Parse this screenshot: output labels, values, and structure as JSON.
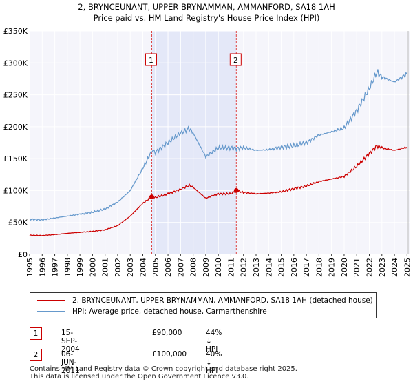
{
  "chart_data": {
    "type": "line",
    "title": "2, BRYNCEUNANT, UPPER BRYNAMMAN, AMMANFORD, SA18 1AH",
    "subtitle": "Price paid vs. HM Land Registry's House Price Index (HPI)",
    "xlabel": "",
    "ylabel": "",
    "xlim": [
      1995,
      2025.2
    ],
    "ylim": [
      0,
      350000
    ],
    "grid": true,
    "y_ticks": [
      {
        "value": 0,
        "label": "£0"
      },
      {
        "value": 50000,
        "label": "£50K"
      },
      {
        "value": 100000,
        "label": "£100K"
      },
      {
        "value": 150000,
        "label": "£150K"
      },
      {
        "value": 200000,
        "label": "£200K"
      },
      {
        "value": 250000,
        "label": "£250K"
      },
      {
        "value": 300000,
        "label": "£300K"
      },
      {
        "value": 350000,
        "label": "£350K"
      }
    ],
    "x_ticks": [
      "1995",
      "1996",
      "1997",
      "1998",
      "1999",
      "2000",
      "2001",
      "2002",
      "2003",
      "2004",
      "2005",
      "2006",
      "2007",
      "2008",
      "2009",
      "2010",
      "2011",
      "2012",
      "2013",
      "2014",
      "2015",
      "2016",
      "2017",
      "2018",
      "2019",
      "2020",
      "2021",
      "2022",
      "2023",
      "2024",
      "2025"
    ],
    "shaded_region": [
      2004.71,
      2011.43
    ],
    "series": [
      {
        "name": "2, BRYNCEUNANT, UPPER BRYNAMMAN, AMMANFORD, SA18 1AH (detached house)",
        "color": "#cc0000",
        "points": [
          [
            1995,
            30000
          ],
          [
            1996,
            29500
          ],
          [
            1997,
            31000
          ],
          [
            1998,
            33000
          ],
          [
            1999,
            34500
          ],
          [
            2000,
            36000
          ],
          [
            2001,
            38500
          ],
          [
            2002,
            45000
          ],
          [
            2003,
            60000
          ],
          [
            2004,
            80000
          ],
          [
            2004.71,
            90000
          ],
          [
            2005,
            89000
          ],
          [
            2006,
            95000
          ],
          [
            2007,
            102000
          ],
          [
            2007.7,
            108000
          ],
          [
            2008,
            105000
          ],
          [
            2009,
            88000
          ],
          [
            2010,
            95000
          ],
          [
            2011,
            95000
          ],
          [
            2011.43,
            100000
          ],
          [
            2012,
            97000
          ],
          [
            2013,
            95000
          ],
          [
            2014,
            96000
          ],
          [
            2015,
            98000
          ],
          [
            2016,
            103000
          ],
          [
            2017,
            107000
          ],
          [
            2018,
            114000
          ],
          [
            2019,
            118000
          ],
          [
            2020,
            122000
          ],
          [
            2021,
            138000
          ],
          [
            2022,
            158000
          ],
          [
            2022.6,
            170000
          ],
          [
            2023,
            167000
          ],
          [
            2024,
            163000
          ],
          [
            2025,
            168000
          ]
        ]
      },
      {
        "name": "HPI: Average price, detached house, Carmarthenshire",
        "color": "#6699cc",
        "points": [
          [
            1995,
            55000
          ],
          [
            1996,
            54000
          ],
          [
            1997,
            57000
          ],
          [
            1998,
            60000
          ],
          [
            1999,
            63000
          ],
          [
            2000,
            66000
          ],
          [
            2001,
            71000
          ],
          [
            2002,
            82000
          ],
          [
            2003,
            100000
          ],
          [
            2004,
            135000
          ],
          [
            2004.71,
            162000
          ],
          [
            2005,
            160000
          ],
          [
            2006,
            175000
          ],
          [
            2007,
            190000
          ],
          [
            2007.7,
            197000
          ],
          [
            2008,
            190000
          ],
          [
            2009,
            153000
          ],
          [
            2010,
            167000
          ],
          [
            2011,
            167000
          ],
          [
            2011.43,
            166000
          ],
          [
            2012,
            167000
          ],
          [
            2013,
            163000
          ],
          [
            2014,
            164000
          ],
          [
            2015,
            168000
          ],
          [
            2016,
            170000
          ],
          [
            2017,
            175000
          ],
          [
            2018,
            187000
          ],
          [
            2019,
            192000
          ],
          [
            2020,
            198000
          ],
          [
            2021,
            225000
          ],
          [
            2022,
            260000
          ],
          [
            2022.6,
            286000
          ],
          [
            2023,
            278000
          ],
          [
            2024,
            270000
          ],
          [
            2025,
            283000
          ]
        ]
      }
    ],
    "markers": [
      {
        "label": "1",
        "x": 2004.71,
        "y": 90000
      },
      {
        "label": "2",
        "x": 2011.43,
        "y": 100000
      }
    ]
  },
  "legend": {
    "items": [
      {
        "label": "2, BRYNCEUNANT, UPPER BRYNAMMAN, AMMANFORD, SA18 1AH (detached house)",
        "color": "#cc0000"
      },
      {
        "label": "HPI: Average price, detached house, Carmarthenshire",
        "color": "#6699cc"
      }
    ]
  },
  "transactions": [
    {
      "badge": "1",
      "date": "15-SEP-2004",
      "price": "£90,000",
      "hpi": "44% ↓ HPI"
    },
    {
      "badge": "2",
      "date": "06-JUN-2011",
      "price": "£100,000",
      "hpi": "40% ↓ HPI"
    }
  ],
  "footer": {
    "line1": "Contains HM Land Registry data © Crown copyright and database right 2025.",
    "line2": "This data is licensed under the Open Government Licence v3.0."
  }
}
